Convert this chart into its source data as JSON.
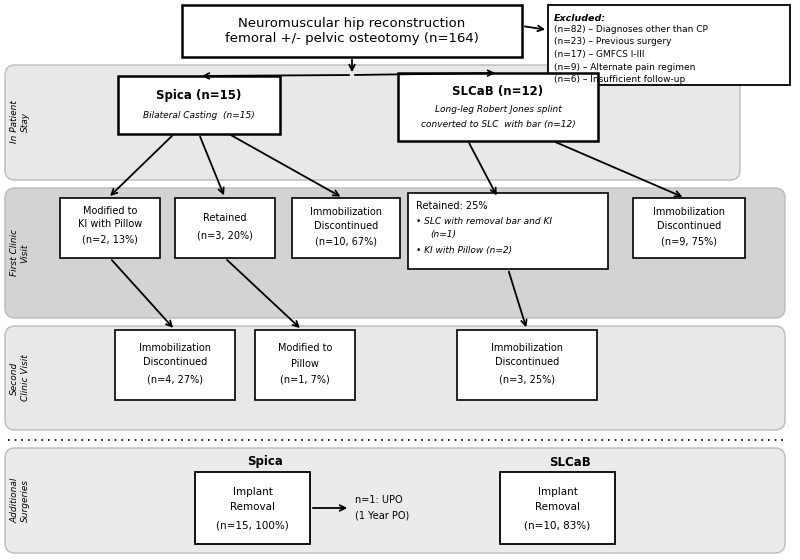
{
  "bg_color": "#ffffff",
  "section_bg": {
    "in_patient": "#e8e8e8",
    "first_clinic": "#d3d3d3",
    "second_clinic": "#e8e8e8",
    "additional": "#ebebeb"
  },
  "section_labels": {
    "in_patient": "In Patient\nStay",
    "first_clinic": "First Clinic\nVisit",
    "second_clinic": "Second\nClinic Visit",
    "additional": "Additional\nSurgeries"
  },
  "title": "Neuromuscular hip reconstruction\nfemoral +/- pelvic osteotomy (n=164)",
  "excl_title": "Excluded:",
  "excl_lines": [
    "(n=82) – Diagnoses other than CP",
    "(n=23) – Previous surgery",
    "(n=17) – GMFCS I-III",
    "(n=9) – Alternate pain regimen",
    "(n=6) – Insufficient follow-up"
  ]
}
